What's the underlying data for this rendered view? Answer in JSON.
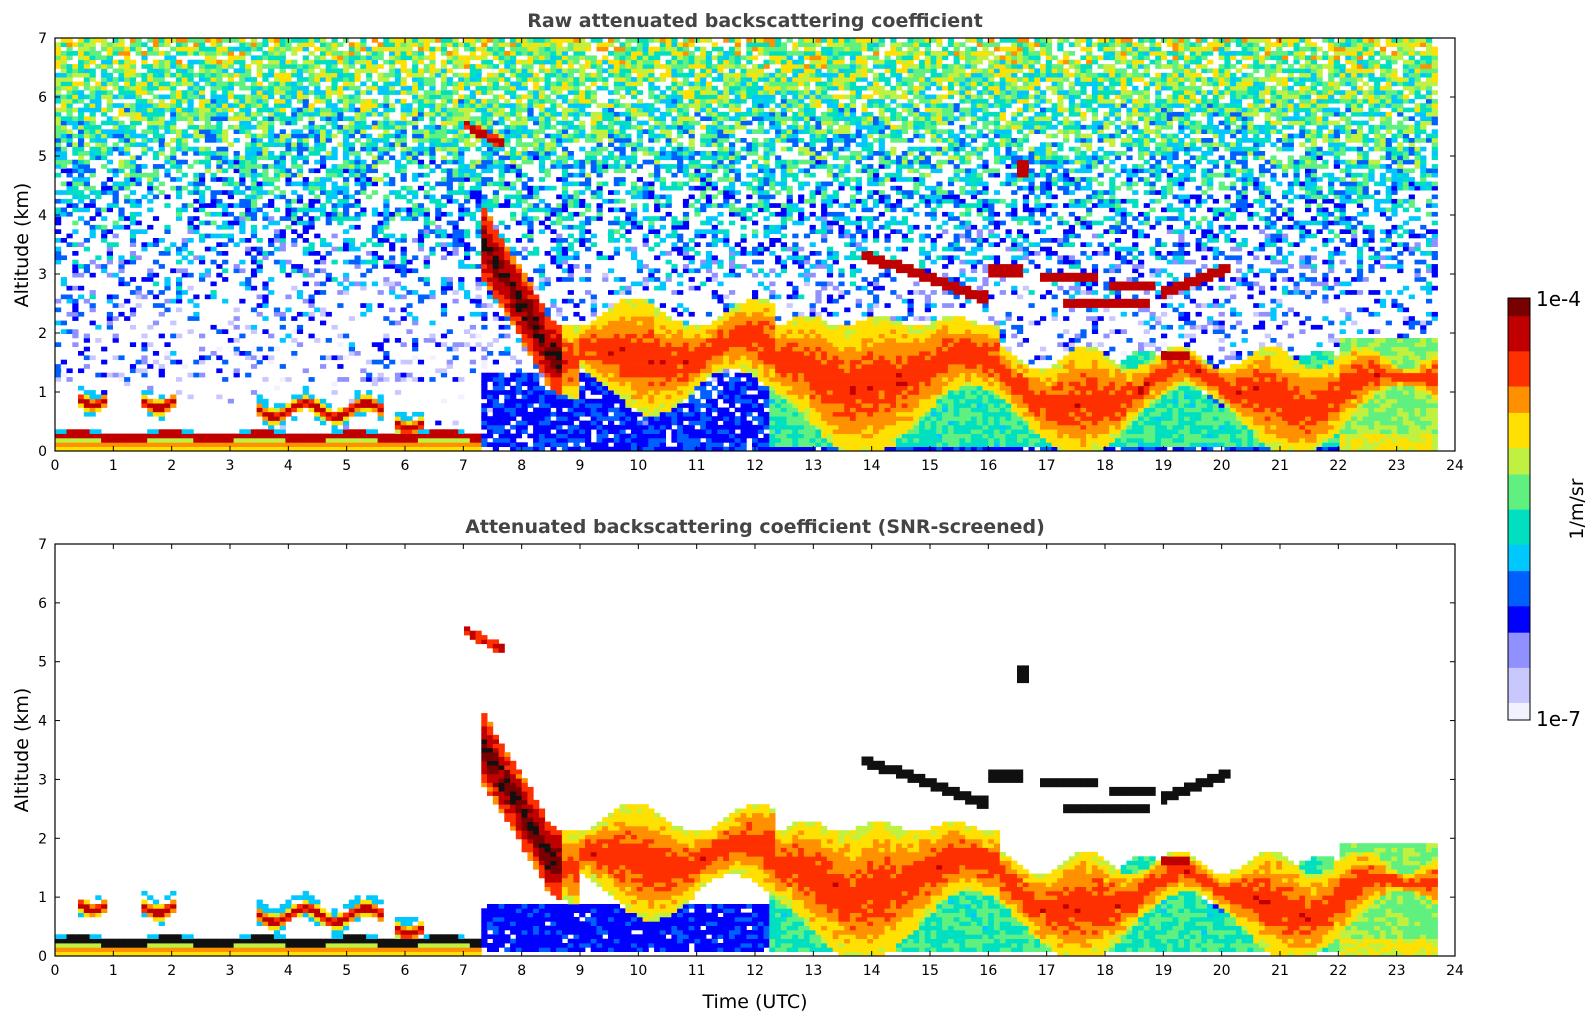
{
  "chart_data": [
    {
      "type": "heatmap",
      "title": "Raw attenuated backscattering coefficient",
      "xlabel": "",
      "ylabel": "Altitude (km)",
      "xlim": [
        0,
        24
      ],
      "ylim": [
        0,
        7
      ],
      "xticks": [
        "0",
        "1",
        "2",
        "3",
        "4",
        "5",
        "6",
        "7",
        "8",
        "9",
        "10",
        "11",
        "12",
        "13",
        "14",
        "15",
        "16",
        "17",
        "18",
        "19",
        "20",
        "21",
        "22",
        "23",
        "24"
      ],
      "yticks": [
        "0",
        "1",
        "2",
        "3",
        "4",
        "5",
        "6",
        "7"
      ],
      "data_end_hour": 23.7,
      "features": [
        {
          "name": "boundary layer aerosol top",
          "hours": [
            0,
            7.3
          ],
          "altitude_km": 0.25,
          "level": "high"
        },
        {
          "name": "low cloud patches",
          "hours": [
            0.4,
            6.3
          ],
          "altitude_km": [
            0.5,
            1.1
          ],
          "level": "high"
        },
        {
          "name": "elevated layer",
          "hours": [
            7.0,
            7.7
          ],
          "altitude_km": [
            5.2,
            5.6
          ],
          "level": "high"
        },
        {
          "name": "descending aerosol plume",
          "hours": [
            7.4,
            13.5
          ],
          "altitude_km": [
            1.0,
            4.2
          ],
          "level": "medium-high"
        },
        {
          "name": "cloud layer",
          "hours": [
            13.8,
            20.1
          ],
          "altitude_km": [
            2.5,
            3.4
          ],
          "level": "high"
        },
        {
          "name": "isolated cloud",
          "hours": [
            16.4,
            16.7
          ],
          "altitude_km": [
            4.6,
            4.9
          ],
          "level": "high"
        },
        {
          "name": "noise background",
          "hours": [
            0,
            23.7
          ],
          "altitude_km": [
            1.5,
            7.0
          ],
          "level": "noise"
        }
      ]
    },
    {
      "type": "heatmap",
      "title": "Attenuated backscattering coefficient (SNR-screened)",
      "xlabel": "Time (UTC)",
      "ylabel": "Altitude (km)",
      "xlim": [
        0,
        24
      ],
      "ylim": [
        0,
        7
      ],
      "xticks": [
        "0",
        "1",
        "2",
        "3",
        "4",
        "5",
        "6",
        "7",
        "8",
        "9",
        "10",
        "11",
        "12",
        "13",
        "14",
        "15",
        "16",
        "17",
        "18",
        "19",
        "20",
        "21",
        "22",
        "23",
        "24"
      ],
      "yticks": [
        "0",
        "1",
        "2",
        "3",
        "4",
        "5",
        "6",
        "7"
      ],
      "data_end_hour": 23.7,
      "features": [
        {
          "name": "boundary layer aerosol top",
          "hours": [
            0,
            7.3
          ],
          "altitude_km": 0.25,
          "level": "saturated"
        },
        {
          "name": "elevated layer",
          "hours": [
            7.0,
            7.7
          ],
          "altitude_km": [
            5.2,
            5.6
          ],
          "level": "high"
        },
        {
          "name": "descending aerosol plume",
          "hours": [
            7.4,
            13.5
          ],
          "altitude_km": [
            1.0,
            4.2
          ],
          "level": "medium-high"
        },
        {
          "name": "cloud layer",
          "hours": [
            13.8,
            20.1
          ],
          "altitude_km": [
            2.5,
            3.4
          ],
          "level": "saturated"
        },
        {
          "name": "isolated cloud",
          "hours": [
            16.4,
            16.7
          ],
          "altitude_km": [
            4.6,
            4.9
          ],
          "level": "saturated"
        }
      ]
    }
  ],
  "colorbar": {
    "label": "1/m/sr",
    "max_label": "1e-4",
    "min_label": "1e-7",
    "colors": [
      "#f2f2ff",
      "#c8c8ff",
      "#9090ff",
      "#0000ff",
      "#0060ff",
      "#00c8ff",
      "#00e0c0",
      "#60f080",
      "#c0f040",
      "#ffe000",
      "#ff9000",
      "#ff3000",
      "#c00000",
      "#780000"
    ]
  }
}
